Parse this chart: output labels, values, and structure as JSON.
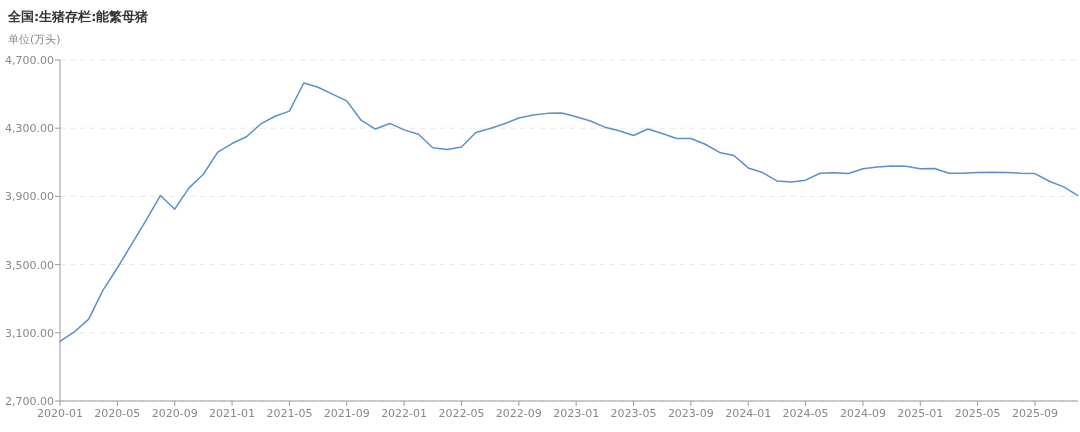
{
  "chart_data": {
    "type": "line",
    "title": "全国:生猪存栏:能繁母猪",
    "ylabel": "单位(万头)",
    "x": [
      "2020-01",
      "2020-02",
      "2020-03",
      "2020-04",
      "2020-05",
      "2020-06",
      "2020-07",
      "2020-08",
      "2020-09",
      "2020-10",
      "2020-11",
      "2020-12",
      "2021-01",
      "2021-02",
      "2021-03",
      "2021-04",
      "2021-05",
      "2021-06",
      "2021-07",
      "2021-08",
      "2021-09",
      "2021-10",
      "2021-11",
      "2021-12",
      "2022-01",
      "2022-02",
      "2022-03",
      "2022-04",
      "2022-05",
      "2022-06",
      "2022-07",
      "2022-08",
      "2022-09",
      "2022-10",
      "2022-11",
      "2022-12",
      "2023-01",
      "2023-02",
      "2023-03",
      "2023-04",
      "2023-05",
      "2023-06",
      "2023-07",
      "2023-08",
      "2023-09",
      "2023-10",
      "2023-11",
      "2023-12",
      "2024-01",
      "2024-02",
      "2024-03",
      "2024-04",
      "2024-05",
      "2024-06",
      "2024-07",
      "2024-08",
      "2024-09",
      "2024-10",
      "2024-11",
      "2024-12",
      "2025-01",
      "2025-02",
      "2025-03",
      "2025-04",
      "2025-05",
      "2025-06",
      "2025-07",
      "2025-08",
      "2025-09",
      "2025-10",
      "2025-11",
      "2025-12"
    ],
    "series": [
      {
        "color": "#5b8fd0",
        "values": [
          3050,
          3105,
          3180,
          3350,
          3480,
          3620,
          3760,
          3905,
          3825,
          3950,
          4030,
          4160,
          4210,
          4250,
          4325,
          4370,
          4400,
          4565,
          4540,
          4500,
          4460,
          4347,
          4295,
          4328,
          4290,
          4265,
          4185,
          4175,
          4190,
          4275,
          4298,
          4326,
          4360,
          4377,
          4387,
          4389,
          4367,
          4342,
          4306,
          4285,
          4257,
          4295,
          4269,
          4240,
          4240,
          4206,
          4158,
          4140,
          4067,
          4040,
          3991,
          3985,
          3995,
          4036,
          4038,
          4034,
          4062,
          4073,
          4079,
          4077,
          4062,
          4064,
          4036,
          4036,
          4040,
          4042,
          4040,
          4036,
          4034,
          3989,
          3956,
          3905
        ]
      }
    ],
    "xlim": [
      "2020-01",
      "2025-12"
    ],
    "xticks": [
      "2020-01",
      "2020-05",
      "2020-09",
      "2021-01",
      "2021-05",
      "2021-09",
      "2022-01",
      "2022-05",
      "2022-09",
      "2023-01",
      "2023-05",
      "2023-09",
      "2024-01",
      "2024-05",
      "2024-09",
      "2025-01",
      "2025-05",
      "2025-09"
    ],
    "ylim": [
      2700,
      4700
    ],
    "yticks": [
      {
        "value": 2700,
        "label": "2,700.00"
      },
      {
        "value": 3100,
        "label": "3,100.00"
      },
      {
        "value": 3500,
        "label": "3,500.00"
      },
      {
        "value": 3900,
        "label": "3,900.00"
      },
      {
        "value": 4300,
        "label": "4,300.00"
      },
      {
        "value": 4700,
        "label": "4,700.00"
      }
    ],
    "grid": "y"
  }
}
